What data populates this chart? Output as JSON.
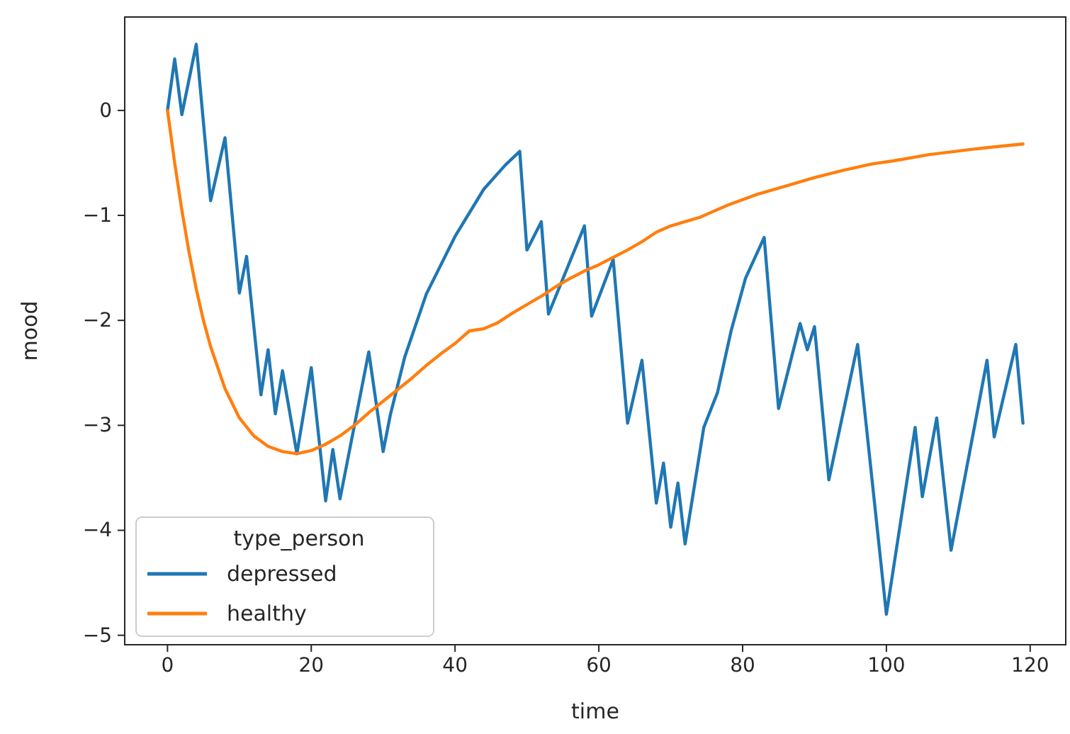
{
  "chart_data": {
    "type": "line",
    "xlabel": "time",
    "ylabel": "mood",
    "legend_title": "type_person",
    "legend": "bottom left",
    "grid": false,
    "xlim": [
      -5.95,
      124.95
    ],
    "ylim": [
      -5.09,
      0.89
    ],
    "xticks": [
      0,
      20,
      40,
      60,
      80,
      100,
      120
    ],
    "yticks": [
      -5,
      -4,
      -3,
      -2,
      -1,
      0
    ],
    "series": [
      {
        "name": "depressed",
        "color": "#1f77b4",
        "x": [
          0,
          1,
          2,
          4,
          6,
          8,
          10,
          11,
          13,
          14,
          15,
          16,
          18,
          20,
          22,
          23,
          24,
          28,
          30,
          31,
          33,
          36,
          40,
          44,
          47,
          49,
          50,
          52,
          53,
          58,
          59,
          62,
          64,
          66,
          68,
          69,
          70,
          71,
          72,
          74.6,
          76.5,
          78.4,
          80.4,
          83,
          85,
          88,
          89,
          90,
          92,
          96,
          100,
          104,
          105,
          107,
          109,
          114,
          115,
          118,
          119
        ],
        "values": [
          0,
          0.49,
          -0.04,
          0.63,
          -0.86,
          -0.26,
          -1.74,
          -1.39,
          -2.71,
          -2.28,
          -2.89,
          -2.48,
          -3.27,
          -2.45,
          -3.72,
          -3.23,
          -3.7,
          -2.3,
          -3.25,
          -2.9,
          -2.35,
          -1.75,
          -1.2,
          -0.75,
          -0.52,
          -0.39,
          -1.33,
          -1.06,
          -1.94,
          -1.1,
          -1.96,
          -1.42,
          -2.98,
          -2.38,
          -3.74,
          -3.36,
          -3.97,
          -3.55,
          -4.13,
          -3.02,
          -2.69,
          -2.1,
          -1.6,
          -1.21,
          -2.84,
          -2.03,
          -2.28,
          -2.06,
          -3.52,
          -2.23,
          -4.8,
          -3.02,
          -3.68,
          -2.93,
          -4.19,
          -2.38,
          -3.11,
          -2.23,
          -2.98
        ]
      },
      {
        "name": "healthy",
        "color": "#ff7f0e",
        "x": [
          0,
          1,
          2,
          3,
          4,
          5,
          6,
          8,
          10,
          12,
          14,
          16,
          18,
          20,
          22,
          24,
          26,
          28,
          30,
          32,
          34,
          36,
          38,
          40,
          42,
          44,
          46,
          48,
          50,
          52,
          54,
          56,
          58,
          60,
          62,
          64,
          66,
          68,
          70,
          74,
          78,
          82,
          86,
          90,
          94,
          98,
          101,
          106,
          112,
          116,
          119
        ],
        "values": [
          0,
          -0.5,
          -0.95,
          -1.35,
          -1.7,
          -2.0,
          -2.25,
          -2.65,
          -2.93,
          -3.1,
          -3.2,
          -3.25,
          -3.27,
          -3.24,
          -3.18,
          -3.1,
          -3.0,
          -2.88,
          -2.77,
          -2.66,
          -2.55,
          -2.43,
          -2.32,
          -2.22,
          -2.1,
          -2.08,
          -2.02,
          -1.93,
          -1.85,
          -1.77,
          -1.68,
          -1.6,
          -1.53,
          -1.47,
          -1.4,
          -1.33,
          -1.25,
          -1.16,
          -1.1,
          -1.02,
          -0.9,
          -0.8,
          -0.72,
          -0.64,
          -0.57,
          -0.51,
          -0.48,
          -0.42,
          -0.37,
          -0.34,
          -0.32
        ]
      }
    ]
  }
}
